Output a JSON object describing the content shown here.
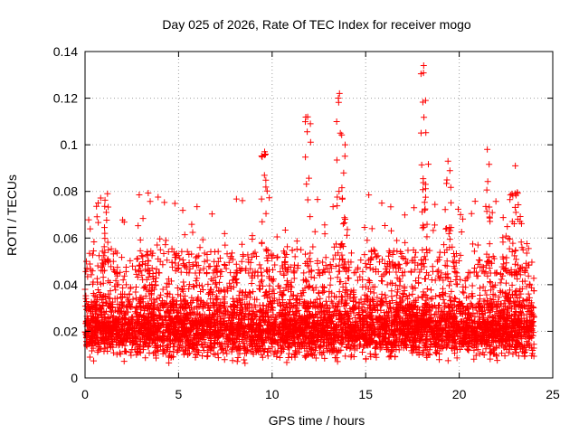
{
  "chart_data": {
    "type": "scatter",
    "title": "Day 025 of 2026, Rate Of TEC Index for receiver mogo",
    "xlabel": "GPS time / hours",
    "ylabel": "ROTI / TECUs",
    "xlim": [
      0,
      25
    ],
    "ylim": [
      0,
      0.14
    ],
    "xticks": [
      0,
      5,
      10,
      15,
      20,
      25
    ],
    "yticks": [
      0,
      0.02,
      0.04,
      0.06,
      0.08,
      0.1,
      0.12,
      0.14
    ],
    "grid": true,
    "marker": "+",
    "color": "#ff0000",
    "series": [
      {
        "name": "ROTI",
        "x_range": [
          0,
          24
        ],
        "baseline_band": [
          0.005,
          0.035
        ],
        "notable_points": [
          {
            "x": 1.2,
            "y": 0.079
          },
          {
            "x": 9.6,
            "y": 0.097
          },
          {
            "x": 11.9,
            "y": 0.112
          },
          {
            "x": 13.6,
            "y": 0.122
          },
          {
            "x": 13.9,
            "y": 0.1
          },
          {
            "x": 18.1,
            "y": 0.134
          },
          {
            "x": 18.2,
            "y": 0.119
          },
          {
            "x": 19.4,
            "y": 0.093
          },
          {
            "x": 21.5,
            "y": 0.098
          },
          {
            "x": 23.0,
            "y": 0.091
          }
        ]
      }
    ]
  }
}
